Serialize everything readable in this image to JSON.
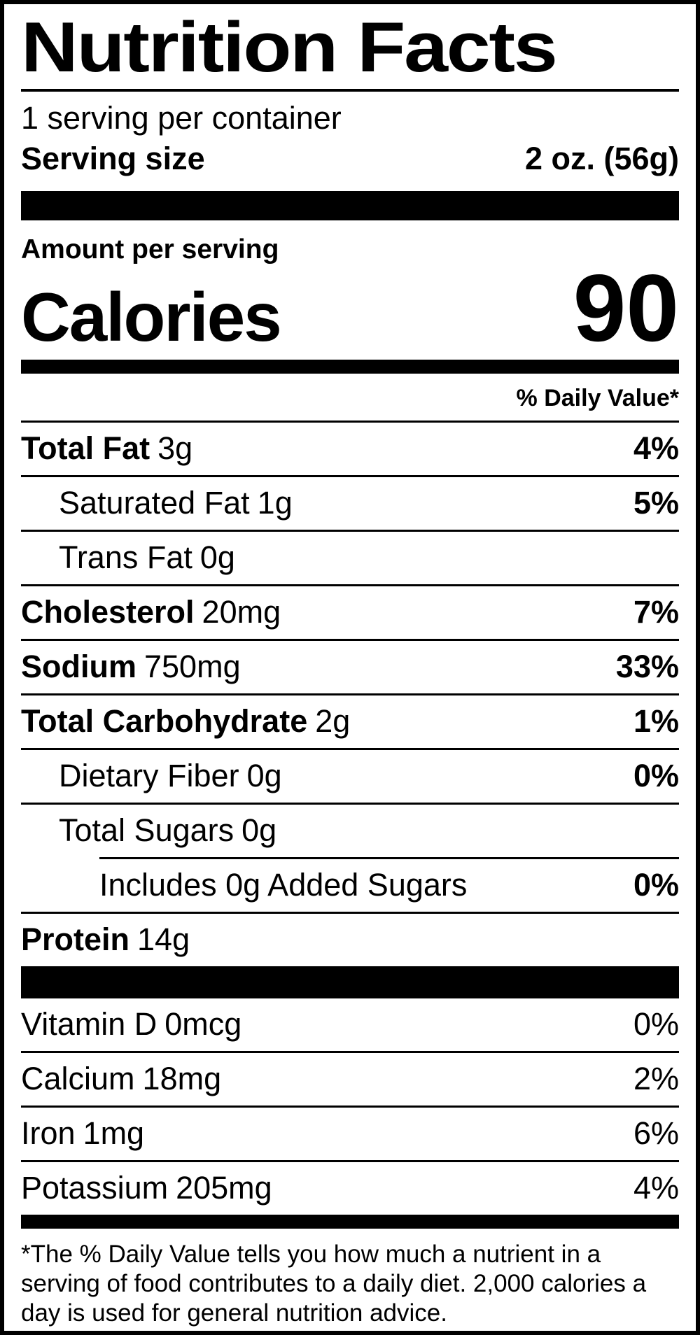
{
  "label": {
    "title": "Nutrition Facts",
    "servings_per_container": "1 serving per container",
    "serving_size_label": "Serving size",
    "serving_size_value": "2 oz. (56g)",
    "amount_per_serving": "Amount per serving",
    "calories_label": "Calories",
    "calories_value": "90",
    "daily_value_header": "% Daily Value*",
    "nutrients": [
      {
        "name": "Total Fat",
        "amount": "3g",
        "dv": "4%"
      },
      {
        "name": "Saturated Fat",
        "amount": "1g",
        "dv": "5%"
      },
      {
        "name": "Trans Fat",
        "amount": "0g",
        "dv": ""
      },
      {
        "name": "Cholesterol",
        "amount": "20mg",
        "dv": "7%"
      },
      {
        "name": "Sodium",
        "amount": "750mg",
        "dv": "33%"
      },
      {
        "name": "Total Carbohydrate",
        "amount": "2g",
        "dv": "1%"
      },
      {
        "name": "Dietary Fiber",
        "amount": "0g",
        "dv": "0%"
      },
      {
        "name": "Total Sugars",
        "amount": "0g",
        "dv": ""
      },
      {
        "name": "Includes 0g Added Sugars",
        "amount": "",
        "dv": "0%"
      },
      {
        "name": "Protein",
        "amount": "14g",
        "dv": ""
      }
    ],
    "vitamins": [
      {
        "name": "Vitamin D",
        "amount": "0mcg",
        "dv": "0%"
      },
      {
        "name": "Calcium",
        "amount": "18mg",
        "dv": "2%"
      },
      {
        "name": "Iron",
        "amount": "1mg",
        "dv": "6%"
      },
      {
        "name": "Potassium",
        "amount": "205mg",
        "dv": "4%"
      }
    ],
    "footnote": "*The % Daily Value tells you how much a nutrient in a serving of food contributes to a daily diet. 2,000 calories a day is used for general nutrition advice.",
    "colors": {
      "ink": "#000000",
      "background": "#ffffff"
    }
  }
}
